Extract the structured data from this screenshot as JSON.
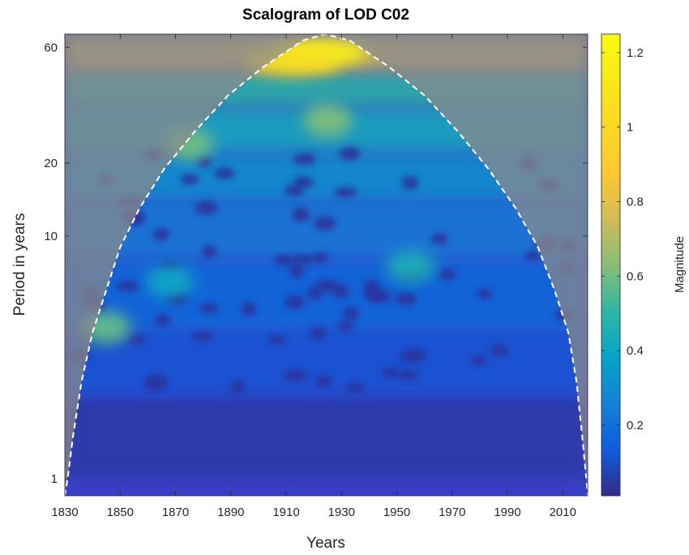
{
  "chart_data": {
    "type": "heatmap",
    "title": "Scalogram of LOD C02",
    "xlabel": "Years",
    "ylabel": "Period in years",
    "colorbar_label": "Magnitude",
    "xlim": [
      1830,
      2019
    ],
    "ylim": [
      0.85,
      68
    ],
    "y_scale": "log",
    "x_ticks": [
      1830,
      1850,
      1870,
      1890,
      1910,
      1930,
      1950,
      1970,
      1990,
      2010
    ],
    "y_ticks": [
      1,
      10,
      20,
      60
    ],
    "colorbar_ticks": [
      0.2,
      0.4,
      0.6,
      0.8,
      1,
      1.2
    ],
    "colorbar_range": [
      0.01,
      1.25
    ],
    "colormap": "parula",
    "cone_of_influence": {
      "style": "white dashed",
      "points": [
        [
          1830,
          0.85
        ],
        [
          1831,
          1.0
        ],
        [
          1833,
          1.5
        ],
        [
          1836,
          2.5
        ],
        [
          1840,
          4
        ],
        [
          1845,
          6
        ],
        [
          1850,
          9
        ],
        [
          1857,
          13
        ],
        [
          1866,
          19
        ],
        [
          1877,
          27
        ],
        [
          1889,
          38
        ],
        [
          1902,
          50
        ],
        [
          1916,
          64
        ],
        [
          1924,
          68
        ],
        [
          1933,
          64
        ],
        [
          1947,
          50
        ],
        [
          1960,
          38
        ],
        [
          1972,
          27
        ],
        [
          1983,
          19
        ],
        [
          1993,
          13
        ],
        [
          2001,
          9
        ],
        [
          2007,
          6
        ],
        [
          2012,
          4
        ],
        [
          2015,
          2.5
        ],
        [
          2017,
          1.5
        ],
        [
          2018.5,
          1.0
        ],
        [
          2019,
          0.85
        ]
      ]
    },
    "magnitude_features": [
      {
        "year": 1922,
        "period": 57,
        "magnitude": 1.2
      },
      {
        "year": 1912,
        "period": 52,
        "magnitude": 1.05
      },
      {
        "year": 1925,
        "period": 30,
        "magnitude": 0.62
      },
      {
        "year": 1875,
        "period": 24,
        "magnitude": 0.6
      },
      {
        "year": 1845,
        "period": 4.2,
        "magnitude": 0.58
      },
      {
        "year": 1955,
        "period": 7.5,
        "magnitude": 0.45
      },
      {
        "year": 1868,
        "period": 6.5,
        "magnitude": 0.4
      }
    ]
  }
}
